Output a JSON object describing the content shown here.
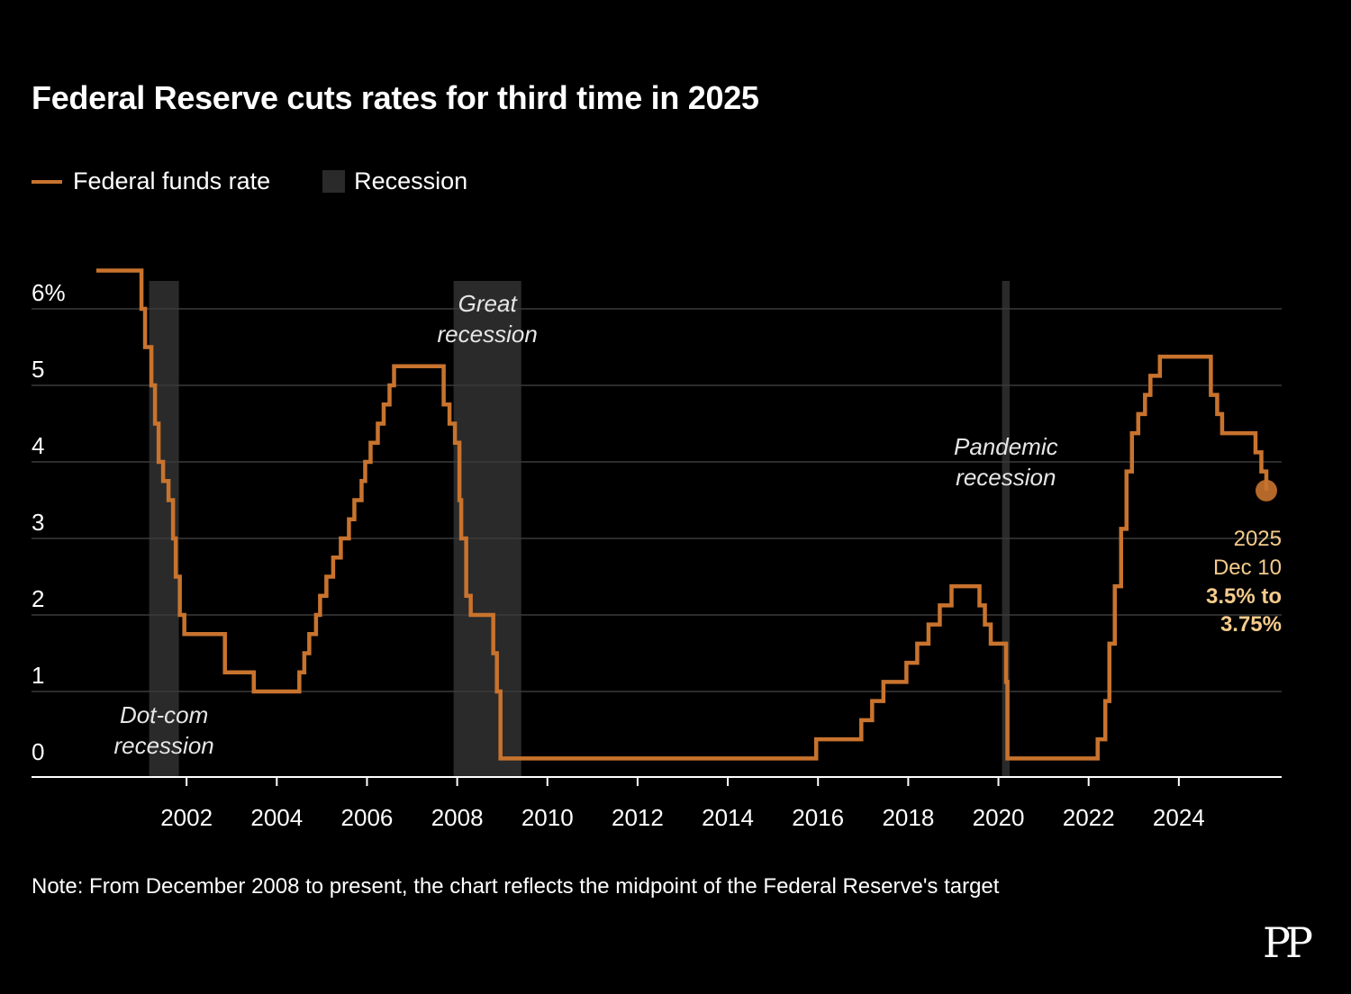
{
  "title": "Federal Reserve cuts rates for third time in 2025",
  "legend": {
    "rate_label": "Federal funds rate",
    "recession_label": "Recession"
  },
  "colors": {
    "background": "#000000",
    "rate": "#c8732e",
    "recession": "#2a2a2a",
    "grid": "#3a3a3a",
    "annotation": "#f5cb8c",
    "text": "#ffffff"
  },
  "note": "Note: From December 2008 to present, the chart reflects the midpoint of the Federal Reserve's target",
  "brand": "PP",
  "chart_data": {
    "type": "line",
    "title": "Federal Reserve cuts rates for third time in 2025",
    "xlabel": "",
    "ylabel": "",
    "xlim": [
      2000.0,
      2026.0
    ],
    "ylim": [
      0,
      6.5
    ],
    "yticks": [
      {
        "value": 0,
        "label": "0"
      },
      {
        "value": 1,
        "label": "1"
      },
      {
        "value": 2,
        "label": "2"
      },
      {
        "value": 3,
        "label": "3"
      },
      {
        "value": 4,
        "label": "4"
      },
      {
        "value": 5,
        "label": "5"
      },
      {
        "value": 6,
        "label": "6%"
      }
    ],
    "xticks": [
      {
        "value": 2002,
        "label": "2002"
      },
      {
        "value": 2004,
        "label": "2004"
      },
      {
        "value": 2006,
        "label": "2006"
      },
      {
        "value": 2008,
        "label": "2008"
      },
      {
        "value": 2010,
        "label": "2010"
      },
      {
        "value": 2012,
        "label": "2012"
      },
      {
        "value": 2014,
        "label": "2014"
      },
      {
        "value": 2016,
        "label": "2016"
      },
      {
        "value": 2018,
        "label": "2018"
      },
      {
        "value": 2020,
        "label": "2020"
      },
      {
        "value": 2022,
        "label": "2022"
      },
      {
        "value": 2024,
        "label": "2024"
      }
    ],
    "recessions": [
      {
        "name": "Dot-com recession",
        "label": [
          "Dot-com",
          "recession"
        ],
        "start": 2001.17,
        "end": 2001.83
      },
      {
        "name": "Great recession",
        "label": [
          "Great",
          "recession"
        ],
        "start": 2007.92,
        "end": 2009.42
      },
      {
        "name": "Pandemic recession",
        "label": [
          "Pandemic",
          "recession"
        ],
        "start": 2020.08,
        "end": 2020.25
      }
    ],
    "series": [
      {
        "name": "Federal funds rate",
        "step": true,
        "points": [
          [
            2000.0,
            6.5
          ],
          [
            2001.0,
            6.0
          ],
          [
            2001.08,
            5.5
          ],
          [
            2001.22,
            5.0
          ],
          [
            2001.3,
            4.5
          ],
          [
            2001.38,
            4.0
          ],
          [
            2001.48,
            3.75
          ],
          [
            2001.6,
            3.5
          ],
          [
            2001.7,
            3.0
          ],
          [
            2001.76,
            2.5
          ],
          [
            2001.85,
            2.0
          ],
          [
            2001.95,
            1.75
          ],
          [
            2002.85,
            1.25
          ],
          [
            2003.49,
            1.0
          ],
          [
            2004.5,
            1.25
          ],
          [
            2004.61,
            1.5
          ],
          [
            2004.72,
            1.75
          ],
          [
            2004.87,
            2.0
          ],
          [
            2004.96,
            2.25
          ],
          [
            2005.1,
            2.5
          ],
          [
            2005.25,
            2.75
          ],
          [
            2005.42,
            3.0
          ],
          [
            2005.6,
            3.25
          ],
          [
            2005.72,
            3.5
          ],
          [
            2005.88,
            3.75
          ],
          [
            2005.96,
            4.0
          ],
          [
            2006.08,
            4.25
          ],
          [
            2006.24,
            4.5
          ],
          [
            2006.37,
            4.75
          ],
          [
            2006.5,
            5.0
          ],
          [
            2006.6,
            5.25
          ],
          [
            2007.7,
            4.75
          ],
          [
            2007.83,
            4.5
          ],
          [
            2007.95,
            4.25
          ],
          [
            2008.05,
            3.5
          ],
          [
            2008.09,
            3.0
          ],
          [
            2008.2,
            2.25
          ],
          [
            2008.3,
            2.0
          ],
          [
            2008.8,
            1.5
          ],
          [
            2008.88,
            1.0
          ],
          [
            2008.96,
            0.125
          ],
          [
            2015.96,
            0.375
          ],
          [
            2016.96,
            0.625
          ],
          [
            2017.2,
            0.875
          ],
          [
            2017.45,
            1.125
          ],
          [
            2017.96,
            1.375
          ],
          [
            2018.2,
            1.625
          ],
          [
            2018.45,
            1.875
          ],
          [
            2018.7,
            2.125
          ],
          [
            2018.96,
            2.375
          ],
          [
            2019.58,
            2.125
          ],
          [
            2019.7,
            1.875
          ],
          [
            2019.83,
            1.625
          ],
          [
            2020.17,
            1.125
          ],
          [
            2020.2,
            0.125
          ],
          [
            2022.2,
            0.375
          ],
          [
            2022.37,
            0.875
          ],
          [
            2022.46,
            1.625
          ],
          [
            2022.58,
            2.375
          ],
          [
            2022.72,
            3.125
          ],
          [
            2022.84,
            3.875
          ],
          [
            2022.96,
            4.375
          ],
          [
            2023.1,
            4.625
          ],
          [
            2023.25,
            4.875
          ],
          [
            2023.37,
            5.125
          ],
          [
            2023.58,
            5.375
          ],
          [
            2024.71,
            4.875
          ],
          [
            2024.85,
            4.625
          ],
          [
            2024.96,
            4.375
          ],
          [
            2025.7,
            4.125
          ],
          [
            2025.83,
            3.875
          ],
          [
            2025.94,
            3.625
          ],
          [
            2025.94,
            3.625
          ]
        ]
      }
    ],
    "endpoint": {
      "x": 2025.94,
      "y": 3.625,
      "year_label": "2025",
      "date_label": "Dec 10",
      "value_label_1": "3.5% to",
      "value_label_2": "3.75%"
    }
  }
}
